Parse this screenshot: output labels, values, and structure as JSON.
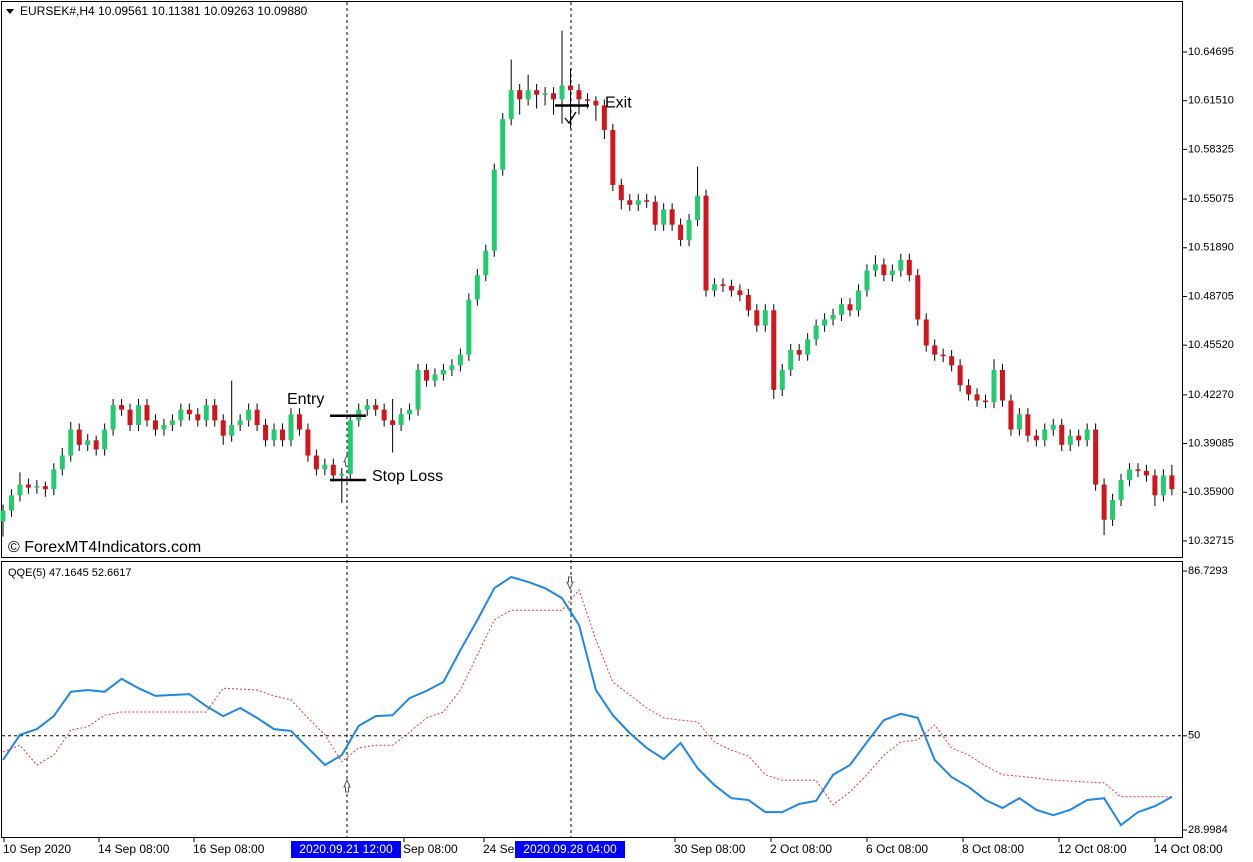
{
  "chart_data": [
    {
      "type": "candlestick",
      "title": "EURSEK#,H4  10.09561 10.11381 10.09263 10.09880",
      "watermark": "© ForexMT4Indicators.com",
      "up_color": "#22cc6e",
      "down_color": "#d4141c",
      "wick_color": "#000000",
      "ylim": [
        10.316,
        10.679
      ],
      "yticks": [
        10.64695,
        {
          "value": 10.6151,
          "label": "10.61510"
        },
        10.58325,
        10.55075,
        {
          "value": 10.5189,
          "label": "10.51890"
        },
        10.48705,
        {
          "value": 10.4552,
          "label": "10.45520"
        },
        {
          "value": 10.4227,
          "label": "10.42270"
        },
        10.39085,
        {
          "value": 10.359,
          "label": "10.35900"
        },
        10.32715
      ],
      "annotations": [
        {
          "text": "Entry",
          "value": 10.409
        },
        {
          "text": "Stop Loss",
          "value": 10.367
        },
        {
          "text": "Exit",
          "value": 10.612
        }
      ],
      "candles": [
        [
          10.34,
          10.351,
          10.33,
          10.347
        ],
        [
          10.347,
          10.361,
          10.343,
          10.357
        ],
        [
          10.357,
          10.372,
          10.353,
          10.364
        ],
        [
          10.364,
          10.368,
          10.358,
          10.362
        ],
        [
          10.362,
          10.367,
          10.358,
          10.363
        ],
        [
          10.363,
          10.366,
          10.356,
          10.361
        ],
        [
          10.361,
          10.378,
          10.357,
          10.374
        ],
        [
          10.374,
          10.388,
          10.37,
          10.383
        ],
        [
          10.383,
          10.405,
          10.379,
          10.4
        ],
        [
          10.4,
          10.404,
          10.386,
          10.39
        ],
        [
          10.39,
          10.397,
          10.386,
          10.393
        ],
        [
          10.393,
          10.396,
          10.383,
          10.387
        ],
        [
          10.387,
          10.404,
          10.383,
          10.4
        ],
        [
          10.4,
          10.42,
          10.396,
          10.416
        ],
        [
          10.416,
          10.42,
          10.409,
          10.413
        ],
        [
          10.413,
          10.417,
          10.399,
          10.403
        ],
        [
          10.403,
          10.42,
          10.399,
          10.416
        ],
        [
          10.416,
          10.42,
          10.402,
          10.406
        ],
        [
          10.406,
          10.41,
          10.396,
          10.4
        ],
        [
          10.4,
          10.407,
          10.396,
          10.403
        ],
        [
          10.403,
          10.41,
          10.399,
          10.406
        ],
        [
          10.406,
          10.417,
          10.402,
          10.413
        ],
        [
          10.413,
          10.417,
          10.406,
          10.41
        ],
        [
          10.41,
          10.414,
          10.402,
          10.406
        ],
        [
          10.406,
          10.42,
          10.402,
          10.416
        ],
        [
          10.416,
          10.42,
          10.402,
          10.406
        ],
        [
          10.406,
          10.41,
          10.39,
          10.396
        ],
        [
          10.396,
          10.432,
          10.392,
          10.403
        ],
        [
          10.403,
          10.41,
          10.399,
          10.406
        ],
        [
          10.406,
          10.417,
          10.402,
          10.413
        ],
        [
          10.413,
          10.417,
          10.399,
          10.403
        ],
        [
          10.403,
          10.407,
          10.389,
          10.393
        ],
        [
          10.393,
          10.404,
          10.389,
          10.4
        ],
        [
          10.4,
          10.404,
          10.389,
          10.393
        ],
        [
          10.393,
          10.414,
          10.389,
          10.41
        ],
        [
          10.41,
          10.414,
          10.396,
          10.4
        ],
        [
          10.4,
          10.404,
          10.379,
          10.383
        ],
        [
          10.383,
          10.387,
          10.37,
          10.374
        ],
        [
          10.374,
          10.381,
          10.37,
          10.377
        ],
        [
          10.377,
          10.381,
          10.366,
          10.37
        ],
        [
          10.37,
          10.375,
          10.352,
          10.371
        ],
        [
          10.371,
          10.41,
          10.367,
          10.406
        ],
        [
          10.406,
          10.417,
          10.402,
          10.413
        ],
        [
          10.413,
          10.42,
          10.409,
          10.416
        ],
        [
          10.416,
          10.42,
          10.409,
          10.413
        ],
        [
          10.413,
          10.417,
          10.402,
          10.406
        ],
        [
          10.406,
          10.42,
          10.385,
          10.403
        ],
        [
          10.403,
          10.414,
          10.399,
          10.41
        ],
        [
          10.41,
          10.417,
          10.406,
          10.413
        ],
        [
          10.413,
          10.443,
          10.409,
          10.439
        ],
        [
          10.439,
          10.443,
          10.428,
          10.432
        ],
        [
          10.432,
          10.44,
          10.428,
          10.436
        ],
        [
          10.436,
          10.443,
          10.432,
          10.439
        ],
        [
          10.439,
          10.446,
          10.435,
          10.442
        ],
        [
          10.442,
          10.453,
          10.438,
          10.449
        ],
        [
          10.449,
          10.489,
          10.445,
          10.485
        ],
        [
          10.485,
          10.505,
          10.481,
          10.501
        ],
        [
          10.501,
          10.521,
          10.497,
          10.517
        ],
        [
          10.517,
          10.574,
          10.513,
          10.57
        ],
        [
          10.57,
          10.607,
          10.566,
          10.603
        ],
        [
          10.603,
          10.642,
          10.599,
          10.622
        ],
        [
          10.622,
          10.626,
          10.606,
          10.616
        ],
        [
          10.616,
          10.632,
          10.612,
          10.622
        ],
        [
          10.622,
          10.626,
          10.61,
          10.619
        ],
        [
          10.619,
          10.624,
          10.612,
          10.62
        ],
        [
          10.62,
          10.624,
          10.606,
          10.616
        ],
        [
          10.616,
          10.661,
          10.6,
          10.625
        ],
        [
          10.625,
          10.636,
          10.597,
          10.622
        ],
        [
          10.622,
          10.626,
          10.606,
          10.616
        ],
        [
          10.616,
          10.62,
          10.61,
          10.615
        ],
        [
          10.615,
          10.618,
          10.602,
          10.612
        ],
        [
          10.612,
          10.616,
          10.59,
          10.596
        ],
        [
          10.596,
          10.6,
          10.556,
          10.56
        ],
        [
          10.56,
          10.564,
          10.544,
          10.55
        ],
        [
          10.55,
          10.554,
          10.543,
          10.547
        ],
        [
          10.547,
          10.554,
          10.543,
          10.55
        ],
        [
          10.55,
          10.554,
          10.545,
          10.549
        ],
        [
          10.549,
          10.553,
          10.53,
          10.534
        ],
        [
          10.534,
          10.548,
          10.53,
          10.544
        ],
        [
          10.544,
          10.548,
          10.53,
          10.534
        ],
        [
          10.534,
          10.538,
          10.52,
          10.524
        ],
        [
          10.524,
          10.541,
          10.52,
          10.537
        ],
        [
          10.537,
          10.572,
          10.533,
          10.553
        ],
        [
          10.553,
          10.557,
          10.487,
          10.491
        ],
        [
          10.491,
          10.499,
          10.487,
          10.495
        ],
        [
          10.495,
          10.499,
          10.49,
          10.494
        ],
        [
          10.494,
          10.498,
          10.487,
          10.491
        ],
        [
          10.491,
          10.495,
          10.484,
          10.488
        ],
        [
          10.488,
          10.492,
          10.474,
          10.478
        ],
        [
          10.478,
          10.482,
          10.464,
          10.468
        ],
        [
          10.468,
          10.482,
          10.464,
          10.478
        ],
        [
          10.478,
          10.482,
          10.42,
          10.426
        ],
        [
          10.426,
          10.443,
          10.422,
          10.439
        ],
        [
          10.439,
          10.456,
          10.435,
          10.452
        ],
        [
          10.452,
          10.456,
          10.445,
          10.449
        ],
        [
          10.449,
          10.463,
          10.445,
          10.459
        ],
        [
          10.459,
          10.472,
          10.455,
          10.468
        ],
        [
          10.468,
          10.476,
          10.464,
          10.472
        ],
        [
          10.472,
          10.479,
          10.468,
          10.475
        ],
        [
          10.475,
          10.486,
          10.471,
          10.482
        ],
        [
          10.482,
          10.486,
          10.474,
          10.478
        ],
        [
          10.478,
          10.495,
          10.474,
          10.491
        ],
        [
          10.491,
          10.508,
          10.487,
          10.504
        ],
        [
          10.504,
          10.514,
          10.5,
          10.508
        ],
        [
          10.508,
          10.512,
          10.497,
          10.501
        ],
        [
          10.501,
          10.508,
          10.497,
          10.504
        ],
        [
          10.504,
          10.515,
          10.5,
          10.511
        ],
        [
          10.511,
          10.515,
          10.497,
          10.501
        ],
        [
          10.501,
          10.505,
          10.468,
          10.472
        ],
        [
          10.472,
          10.476,
          10.451,
          10.455
        ],
        [
          10.455,
          10.459,
          10.445,
          10.449
        ],
        [
          10.449,
          10.453,
          10.444,
          10.448
        ],
        [
          10.448,
          10.452,
          10.438,
          10.442
        ],
        [
          10.442,
          10.446,
          10.425,
          10.429
        ],
        [
          10.429,
          10.433,
          10.419,
          10.423
        ],
        [
          10.423,
          10.427,
          10.415,
          10.419
        ],
        [
          10.419,
          10.423,
          10.414,
          10.418
        ],
        [
          10.418,
          10.446,
          10.414,
          10.439
        ],
        [
          10.439,
          10.443,
          10.415,
          10.419
        ],
        [
          10.419,
          10.423,
          10.396,
          10.4
        ],
        [
          10.4,
          10.414,
          10.396,
          10.41
        ],
        [
          10.41,
          10.414,
          10.392,
          10.396
        ],
        [
          10.396,
          10.4,
          10.389,
          10.393
        ],
        [
          10.393,
          10.404,
          10.389,
          10.4
        ],
        [
          10.4,
          10.407,
          10.396,
          10.403
        ],
        [
          10.403,
          10.407,
          10.386,
          10.39
        ],
        [
          10.39,
          10.4,
          10.386,
          10.396
        ],
        [
          10.396,
          10.4,
          10.389,
          10.393
        ],
        [
          10.393,
          10.404,
          10.389,
          10.4
        ],
        [
          10.4,
          10.404,
          10.36,
          10.364
        ],
        [
          10.364,
          10.368,
          10.331,
          10.341
        ],
        [
          10.341,
          10.358,
          10.337,
          10.354
        ],
        [
          10.354,
          10.371,
          10.35,
          10.367
        ],
        [
          10.367,
          10.378,
          10.363,
          10.374
        ],
        [
          10.374,
          10.378,
          10.369,
          10.373
        ],
        [
          10.373,
          10.377,
          10.366,
          10.37
        ],
        [
          10.37,
          10.374,
          10.35,
          10.357
        ],
        [
          10.357,
          10.374,
          10.353,
          10.37
        ],
        [
          10.37,
          10.377,
          10.357,
          10.361
        ]
      ]
    },
    {
      "type": "line",
      "title": "QQE(5) 47.1645 52.6617",
      "ylim": [
        27.22,
        88.74
      ],
      "yticks": [
        86.7293,
        50,
        28.9984
      ],
      "levels": [
        50
      ],
      "series": [
        {
          "color": "#1e88e5",
          "dashed": false,
          "values": [
            44.6,
            50.2,
            51.5,
            54.4,
            59.8,
            60.2,
            59.8,
            62.7,
            60.6,
            58.9,
            59.1,
            59.3,
            56.6,
            54.4,
            56.2,
            54.0,
            51.5,
            51.1,
            47.3,
            43.5,
            45.7,
            52.2,
            54.4,
            54.6,
            58.4,
            60.0,
            62.0,
            69.1,
            75.8,
            82.9,
            85.4,
            84.3,
            82.9,
            80.7,
            74.7,
            60.2,
            54.6,
            50.6,
            47.3,
            44.8,
            48.4,
            42.8,
            39.0,
            36.1,
            35.7,
            33.0,
            33.0,
            34.8,
            35.5,
            41.3,
            43.5,
            48.6,
            53.5,
            54.9,
            54.0,
            44.6,
            40.8,
            38.6,
            35.7,
            33.9,
            36.1,
            33.5,
            32.3,
            33.5,
            35.7,
            36.1,
            30.1,
            33.0,
            34.3,
            36.4
          ]
        },
        {
          "color": "#e53935",
          "dashed": true,
          "values": [
            46.4,
            47.9,
            43.5,
            45.7,
            51.3,
            52.0,
            54.6,
            55.3,
            55.3,
            55.3,
            55.3,
            55.3,
            55.3,
            60.6,
            60.4,
            60.2,
            58.9,
            58.0,
            54.0,
            50.2,
            44.2,
            47.3,
            47.9,
            47.9,
            50.8,
            54.0,
            55.3,
            60.2,
            68.0,
            75.8,
            78.0,
            78.0,
            78.0,
            78.0,
            82.5,
            71.4,
            62.0,
            59.1,
            56.2,
            54.0,
            53.5,
            53.1,
            48.6,
            46.8,
            45.5,
            41.3,
            40.1,
            40.1,
            40.1,
            34.6,
            37.5,
            41.3,
            45.7,
            48.6,
            49.1,
            52.4,
            47.3,
            45.7,
            43.3,
            41.3,
            41.0,
            40.6,
            40.1,
            39.9,
            39.7,
            39.5,
            36.4,
            36.4,
            36.4,
            36.4
          ]
        }
      ]
    }
  ],
  "time_labels": [
    "10 Sep 2020",
    "14 Sep 08:00",
    "16 Sep 08:00",
    "Sep 08:00",
    "24 Se",
    "30 Sep 08:00",
    "2 Oct 08:00",
    "6 Oct 08:00",
    "8 Oct 08:00",
    "12 Oct 08:00",
    "14 Oct 08:00"
  ],
  "highlighted_labels": [
    "2020.09.21 12:00",
    "2020.09.28 04:00"
  ]
}
